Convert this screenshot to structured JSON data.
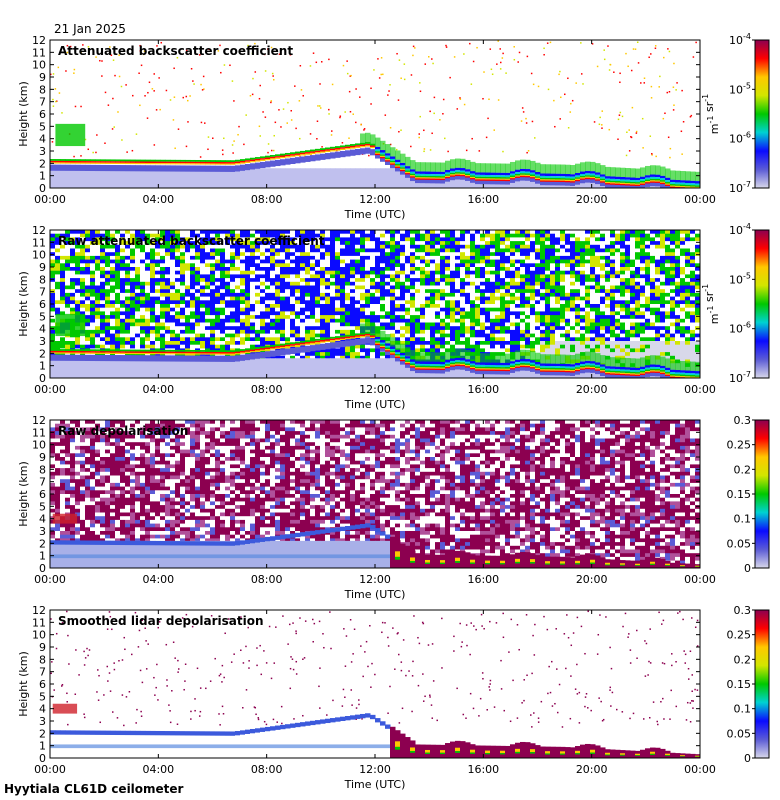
{
  "header": {
    "date": "21 Jan 2025"
  },
  "footer": {
    "instrument": "Hyytiala CL61D ceilometer"
  },
  "colors": {
    "background": "#ffffff",
    "frame": "#000000",
    "colormap": [
      "#d8d8ea",
      "#5b5bd6",
      "#0a0aff",
      "#00d2d2",
      "#00c800",
      "#d2e600",
      "#ffc800",
      "#ff0000",
      "#8c0050"
    ]
  },
  "chart_data": [
    {
      "type": "heatmap",
      "title": "Attenuated backscatter coefficient",
      "xlabel": "Time (UTC)",
      "ylabel": "Height (km)",
      "x_ticks": [
        "00:00",
        "04:00",
        "08:00",
        "12:00",
        "16:00",
        "20:00",
        "00:00"
      ],
      "xlim": [
        0,
        24
      ],
      "y_ticks": [
        "0",
        "1",
        "2",
        "3",
        "4",
        "5",
        "6",
        "7",
        "8",
        "9",
        "10",
        "11",
        "12"
      ],
      "ylim": [
        0,
        12
      ],
      "colorbar": {
        "scale": "log",
        "range": [
          1e-07,
          0.0001
        ],
        "ticks": [
          "10-7",
          "10-6",
          "10-5",
          "10-4"
        ],
        "unit": "m-1 sr-1"
      },
      "features": {
        "cloud_base_km": [
          [
            0,
            1.9
          ],
          [
            6.8,
            1.8
          ],
          [
            11.8,
            3.3
          ],
          [
            13.5,
            0.9
          ],
          [
            19,
            0.7
          ],
          [
            24,
            0.1
          ]
        ]
      }
    },
    {
      "type": "heatmap",
      "title": "Raw attenuated backscatter coefficient",
      "xlabel": "Time (UTC)",
      "ylabel": "Height (km)",
      "x_ticks": [
        "00:00",
        "04:00",
        "08:00",
        "12:00",
        "16:00",
        "20:00",
        "00:00"
      ],
      "xlim": [
        0,
        24
      ],
      "y_ticks": [
        "0",
        "1",
        "2",
        "3",
        "4",
        "5",
        "6",
        "7",
        "8",
        "9",
        "10",
        "11",
        "12"
      ],
      "ylim": [
        0,
        12
      ],
      "colorbar": {
        "scale": "log",
        "range": [
          1e-07,
          0.0001
        ],
        "ticks": [
          "10-7",
          "10-6",
          "10-5",
          "10-4"
        ],
        "unit": "m-1 sr-1"
      }
    },
    {
      "type": "heatmap",
      "title": "Raw depolarisation",
      "xlabel": "Time (UTC)",
      "ylabel": "Height (km)",
      "x_ticks": [
        "00:00",
        "04:00",
        "08:00",
        "12:00",
        "16:00",
        "20:00",
        "00:00"
      ],
      "xlim": [
        0,
        24
      ],
      "y_ticks": [
        "0",
        "1",
        "2",
        "3",
        "4",
        "5",
        "6",
        "7",
        "8",
        "9",
        "10",
        "11",
        "12"
      ],
      "ylim": [
        0,
        12
      ],
      "colorbar": {
        "scale": "linear",
        "range": [
          0,
          0.3
        ],
        "ticks": [
          "0",
          "0.05",
          "0.1",
          "0.15",
          "0.2",
          "0.25",
          "0.3"
        ]
      }
    },
    {
      "type": "heatmap",
      "title": "Smoothed lidar depolarisation",
      "xlabel": "Time (UTC)",
      "ylabel": "Height (km)",
      "x_ticks": [
        "00:00",
        "04:00",
        "08:00",
        "12:00",
        "16:00",
        "20:00",
        "00:00"
      ],
      "xlim": [
        0,
        24
      ],
      "y_ticks": [
        "0",
        "1",
        "2",
        "3",
        "4",
        "5",
        "6",
        "7",
        "8",
        "9",
        "10",
        "11",
        "12"
      ],
      "ylim": [
        0,
        12
      ],
      "colorbar": {
        "scale": "linear",
        "range": [
          0,
          0.3
        ],
        "ticks": [
          "0",
          "0.05",
          "0.1",
          "0.15",
          "0.2",
          "0.25",
          "0.3"
        ]
      }
    }
  ]
}
